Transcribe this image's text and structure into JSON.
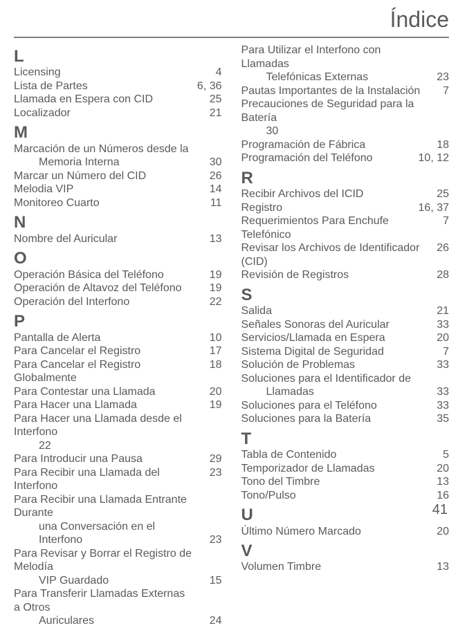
{
  "title": "Índice",
  "page_number": "41",
  "colors": {
    "text": "#5a5a5a",
    "rule": "#808080",
    "bg": "#ffffff"
  },
  "fonts": {
    "title_size": 32,
    "letter_size": 24,
    "entry_size": 16,
    "pagenum_size": 20
  },
  "left": {
    "L": [
      {
        "text": "Licensing",
        "page": "4"
      },
      {
        "text": "Lista de Partes",
        "page": "6, 36"
      },
      {
        "text": "Llamada en Espera con CID",
        "page": "25"
      },
      {
        "text": "Localizador",
        "page": "21"
      }
    ],
    "M": [
      {
        "text": "Marcación de un Números desde la",
        "cont": "Memoria Interna",
        "page": "30"
      },
      {
        "text": "Marcar un Número del CID",
        "page": "26"
      },
      {
        "text": "Melodia VIP",
        "page": "14"
      },
      {
        "text": "Monitoreo Cuarto",
        "page": "11"
      }
    ],
    "N": [
      {
        "text": "Nombre del Auricular",
        "page": "13"
      }
    ],
    "O": [
      {
        "text": "Operación Básica del Teléfono",
        "page": "19"
      },
      {
        "text": "Operación de Altavoz del Teléfono",
        "page": "19"
      },
      {
        "text": "Operación del Interfono",
        "page": "22"
      }
    ],
    "P": [
      {
        "text": "Pantalla de Alerta",
        "page": "10"
      },
      {
        "text": "Para Cancelar el Registro",
        "page": "17"
      },
      {
        "text": "Para Cancelar el Registro Globalmente",
        "page": "18"
      },
      {
        "text": "Para Contestar una Llamada",
        "page": "20"
      },
      {
        "text": "Para Hacer una Llamada",
        "page": "19"
      },
      {
        "text": "Para Hacer una Llamada desde el Interfono",
        "cont": "22",
        "page": ""
      },
      {
        "text": "Para Introducir una Pausa",
        "page": "29"
      },
      {
        "text": "Para Recibir una Llamada del Interfono",
        "page": "23"
      },
      {
        "text": "Para Recibir una Llamada Entrante Durante",
        "cont": "una Conversación en el Interfono",
        "page": "23"
      },
      {
        "text": "Para Revisar y Borrar el Registro de Melodía",
        "cont": "VIP Guardado",
        "page": "15"
      },
      {
        "text": "Para Transferir Llamadas Externas a Otros",
        "cont": "Auriculares",
        "page": "24"
      }
    ]
  },
  "right": {
    "_start": [
      {
        "text": "Para Utilizar el Interfono con Llamadas",
        "cont": "Telefónicas Externas",
        "page": "23"
      },
      {
        "text": "Pautas Importantes de la Instalación",
        "page": "7"
      },
      {
        "text": "Precauciones de Seguridad para la Batería",
        "cont": "30",
        "page": ""
      },
      {
        "text": "Programación de Fábrica",
        "page": "18"
      },
      {
        "text": "Programación del Teléfono",
        "page": "10, 12"
      }
    ],
    "R": [
      {
        "text": "Recibir Archivos del ICID",
        "page": "25"
      },
      {
        "text": "Registro",
        "page": "16, 37"
      },
      {
        "text": "Requerimientos Para Enchufe Telefónico",
        "page": "7"
      },
      {
        "text": "Revisar los Archivos de Identificador (CID)",
        "page": "26",
        "tight": true
      },
      {
        "text": "Revisión de Registros",
        "page": "28"
      }
    ],
    "S": [
      {
        "text": "Salida",
        "page": "21"
      },
      {
        "text": "Señales Sonoras del Auricular",
        "page": "33"
      },
      {
        "text": "Servicios/Llamada en Espera",
        "page": "20"
      },
      {
        "text": "Sistema Digital de Seguridad",
        "page": "7"
      },
      {
        "text": "Solución de Problemas",
        "page": "33"
      },
      {
        "text": "Soluciones para el Identificador de",
        "cont": "Llamadas",
        "page": "33"
      },
      {
        "text": "Soluciones para el Teléfono",
        "page": "33"
      },
      {
        "text": "Soluciones para la Batería",
        "page": "35"
      }
    ],
    "T": [
      {
        "text": "Tabla de Contenido",
        "page": "5"
      },
      {
        "text": "Temporizador de Llamadas",
        "page": "20"
      },
      {
        "text": "Tono del Timbre",
        "page": "13"
      },
      {
        "text": "Tono/Pulso",
        "page": "16"
      }
    ],
    "U": [
      {
        "text": "Último Número Marcado",
        "page": "20"
      }
    ],
    "V": [
      {
        "text": "Volumen Timbre",
        "page": "13"
      }
    ]
  }
}
